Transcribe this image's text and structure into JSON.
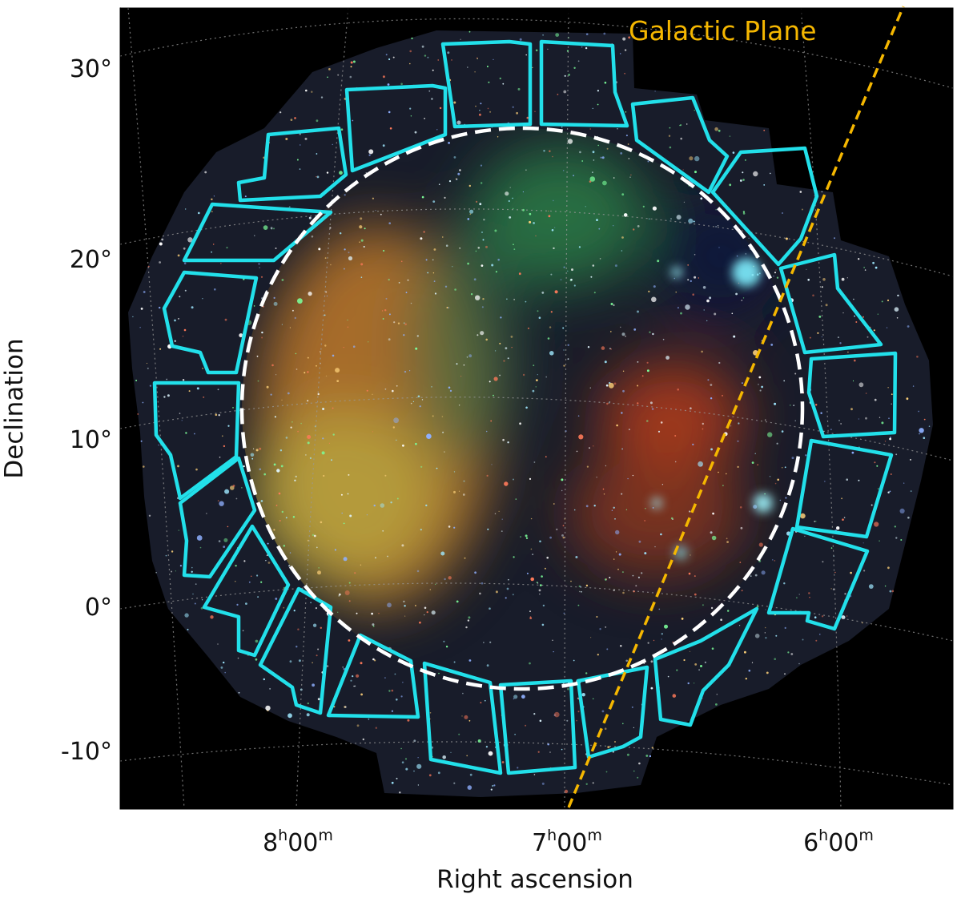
{
  "figure": {
    "xlabel": "Right ascension",
    "ylabel": "Declination",
    "x_ticks": [
      {
        "hours": "8",
        "minutes": "00"
      },
      {
        "hours": "7",
        "minutes": "00"
      },
      {
        "hours": "6",
        "minutes": "00"
      }
    ],
    "hour_symbol": "h",
    "minute_symbol": "m",
    "y_ticks": [
      "30°",
      "20°",
      "10°",
      "0°",
      "-10°"
    ],
    "galactic_plane_label": "Galactic Plane",
    "colors": {
      "background": "#000000",
      "field_outlines": "#22e0ea",
      "circle": "#ffffff",
      "galactic_plane": "#f5b700",
      "grid": "#9a9a9a"
    }
  }
}
